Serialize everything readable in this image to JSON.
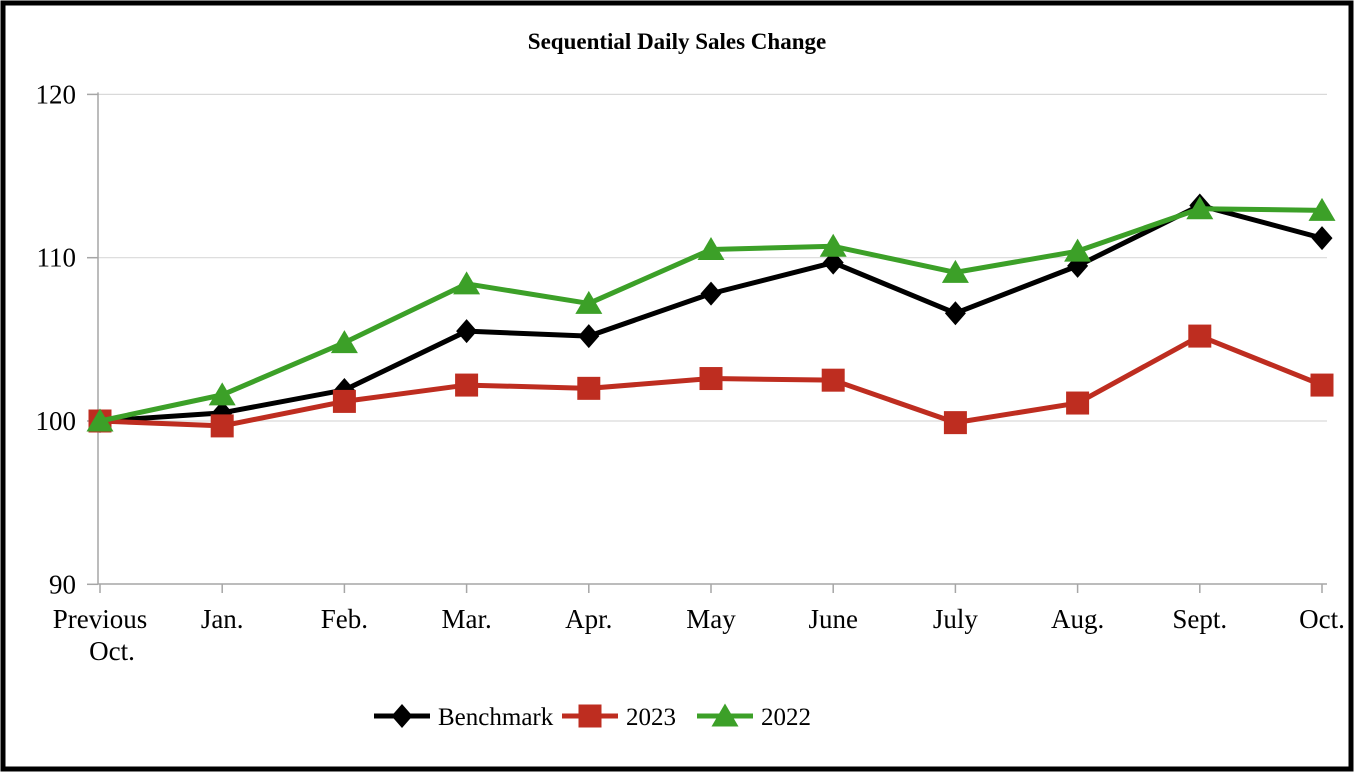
{
  "chart_data": {
    "type": "line",
    "title": "Sequential Daily Sales Change",
    "categories": [
      "Previous Oct.",
      "Jan.",
      "Feb.",
      "Mar.",
      "Apr.",
      "May",
      "June",
      "July",
      "Aug.",
      "Sept.",
      "Oct."
    ],
    "series": [
      {
        "name": "Benchmark",
        "color": "#000000",
        "marker": "diamond",
        "values": [
          100.0,
          100.5,
          101.9,
          105.5,
          105.2,
          107.8,
          109.7,
          106.6,
          109.5,
          113.2,
          111.2
        ]
      },
      {
        "name": "2023",
        "color": "#BE2D20",
        "marker": "square",
        "values": [
          100.0,
          99.7,
          101.2,
          102.2,
          102.0,
          102.6,
          102.5,
          99.9,
          101.1,
          105.2,
          102.2
        ]
      },
      {
        "name": "2022",
        "color": "#3CA028",
        "marker": "triangle",
        "values": [
          100.0,
          101.6,
          104.8,
          108.4,
          107.2,
          110.5,
          110.7,
          109.1,
          110.4,
          113.0,
          112.9
        ]
      }
    ],
    "xlabel": "",
    "ylabel": "",
    "ylim": [
      90,
      120
    ],
    "yticks": [
      90,
      100,
      110,
      120
    ],
    "grid": true,
    "legend_position": "bottom",
    "colors": {
      "axis": "#A6A6A6",
      "gridline": "#D9D9D9",
      "frame": "#000000",
      "background": "#FFFFFF"
    }
  }
}
